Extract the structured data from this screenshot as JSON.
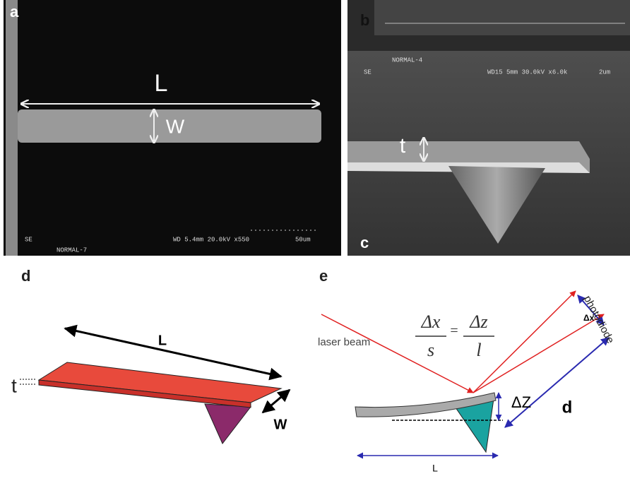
{
  "panels": {
    "a": {
      "label": "a",
      "length_label": "L",
      "width_label": "W",
      "detector": "SE",
      "mode": "NORMAL-7",
      "params": "WD 5.4mm 20.0kV x550",
      "scale": "50um"
    },
    "b": {
      "label": "b",
      "mode": "NORMAL-4",
      "detector": "SE",
      "params": "WD15 5mm 30.0kV x6.0k",
      "scale": "2um"
    },
    "c": {
      "label": "c",
      "thickness_label": "t"
    },
    "d": {
      "label": "d",
      "length_label": "L",
      "thickness_label": "t",
      "width_label": "W"
    },
    "e": {
      "label": "e",
      "laser_label": "laser beam",
      "formula": {
        "num_left": "Δx",
        "den_left": "s",
        "equals": "=",
        "num_right": "Δz",
        "den_right": "l"
      },
      "detector_label": "photodiode",
      "dx_label": "Δx",
      "dz_label": "ΔZ",
      "d_label": "d",
      "length_label": "L"
    }
  }
}
